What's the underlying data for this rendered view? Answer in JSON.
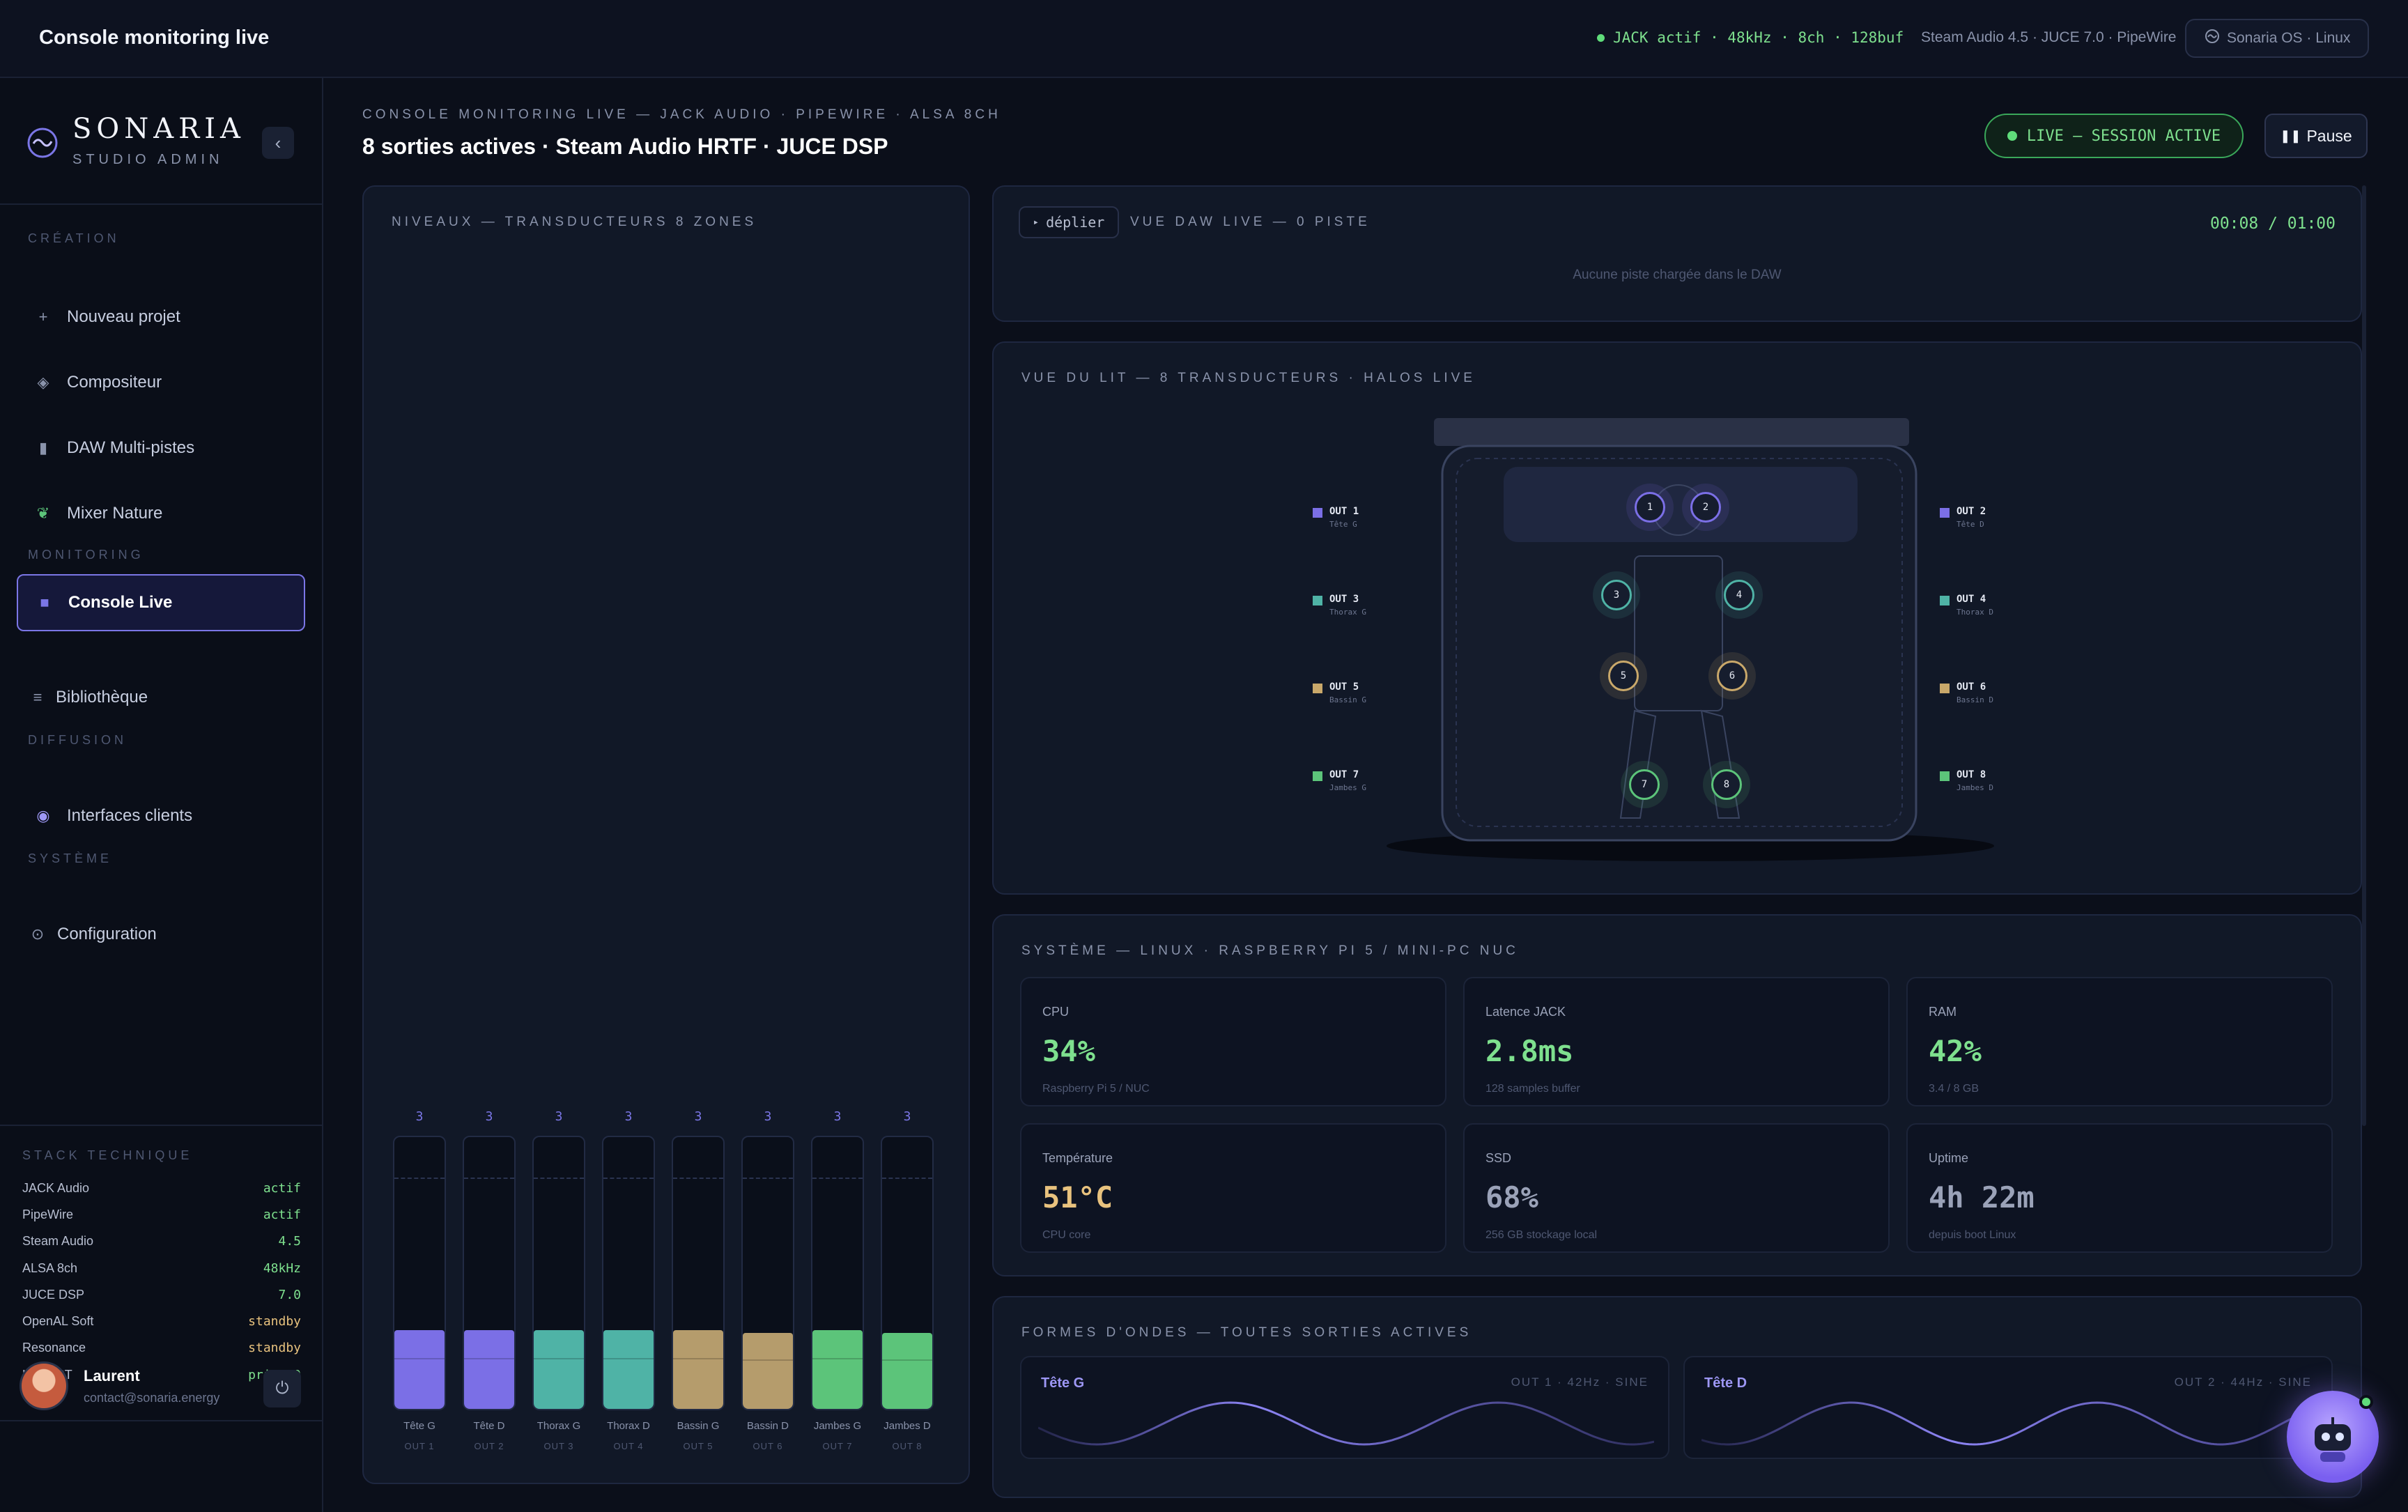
{
  "topbar": {
    "title": "Console monitoring live",
    "jack_status": "JACK actif · 48kHz · 8ch · 128buf",
    "stack_info": "Steam Audio 4.5 · JUCE 7.0 · PipeWire",
    "os_label": "Sonaria OS · Linux"
  },
  "brand": {
    "name": "SONARIA",
    "subtitle": "STUDIO ADMIN"
  },
  "sidebar": {
    "sections": {
      "creation": "CRÉATION",
      "monitoring": "MONITORING",
      "diffusion": "DIFFUSION",
      "systeme": "SYSTÈME"
    },
    "items": [
      {
        "label": "Nouveau projet",
        "icon": "plus-icon"
      },
      {
        "label": "Compositeur",
        "icon": "diamond-icon"
      },
      {
        "label": "DAW Multi-pistes",
        "icon": "mixer-icon"
      },
      {
        "label": "Mixer Nature",
        "icon": "leaf-icon"
      },
      {
        "label": "Console Live",
        "icon": "square-icon",
        "active": true
      },
      {
        "label": "Bibliothèque",
        "icon": "lines-icon"
      },
      {
        "label": "Interfaces clients",
        "icon": "circle-icon"
      },
      {
        "label": "Configuration",
        "icon": "gear-icon"
      }
    ],
    "stack_title": "STACK TECHNIQUE",
    "stack": [
      {
        "name": "JACK Audio",
        "value": "actif"
      },
      {
        "name": "PipeWire",
        "value": "actif"
      },
      {
        "name": "Steam Audio",
        "value": "4.5"
      },
      {
        "name": "ALSA 8ch",
        "value": "48kHz"
      },
      {
        "name": "JUCE DSP",
        "value": "7.0"
      },
      {
        "name": "OpenAL Soft",
        "value": "standby"
      },
      {
        "name": "Resonance",
        "value": "standby"
      },
      {
        "name": "Linux RT",
        "value": "prio 90"
      }
    ],
    "user": {
      "name": "Laurent",
      "email": "contact@sonaria.energy"
    }
  },
  "header": {
    "kicker": "CONSOLE MONITORING LIVE — JACK AUDIO · PIPEWIRE · ALSA 8CH",
    "title": "8 sorties actives · Steam Audio HRTF · JUCE DSP",
    "live_badge": "LIVE — SESSION ACTIVE",
    "pause_label": "Pause"
  },
  "levels": {
    "title": "NIVEAUX — TRANSDUCTEURS 8 ZONES",
    "channels": [
      {
        "label": "Tête G",
        "out": "OUT 1",
        "value": "3",
        "level": 0.29,
        "color": "#7b6fe6"
      },
      {
        "label": "Tête D",
        "out": "OUT 2",
        "value": "3",
        "level": 0.29,
        "color": "#7b6fe6"
      },
      {
        "label": "Thorax G",
        "out": "OUT 3",
        "value": "3",
        "level": 0.29,
        "color": "#4fb3a6"
      },
      {
        "label": "Thorax D",
        "out": "OUT 4",
        "value": "3",
        "level": 0.29,
        "color": "#4fb3a6"
      },
      {
        "label": "Bassin G",
        "out": "OUT 5",
        "value": "3",
        "level": 0.29,
        "color": "#b59c6c"
      },
      {
        "label": "Bassin D",
        "out": "OUT 6",
        "value": "3",
        "level": 0.28,
        "color": "#b59c6c"
      },
      {
        "label": "Jambes G",
        "out": "OUT 7",
        "value": "3",
        "level": 0.29,
        "color": "#5cc47a"
      },
      {
        "label": "Jambes D",
        "out": "OUT 8",
        "value": "3",
        "level": 0.28,
        "color": "#5cc47a"
      }
    ]
  },
  "daw": {
    "expand_label": "déplier",
    "title": "VUE DAW LIVE — 0 PISTE",
    "time": "00:08 / 01:00",
    "empty": "Aucune piste chargée dans le DAW"
  },
  "bed": {
    "title": "VUE DU LIT — 8 TRANSDUCTEURS · HALOS LIVE",
    "outputs": [
      {
        "out": "OUT 1",
        "zone": "Tête G",
        "color": "#7b6fe6"
      },
      {
        "out": "OUT 2",
        "zone": "Tête D",
        "color": "#7b6fe6"
      },
      {
        "out": "OUT 3",
        "zone": "Thorax G",
        "color": "#4fb3a6"
      },
      {
        "out": "OUT 4",
        "zone": "Thorax D",
        "color": "#4fb3a6"
      },
      {
        "out": "OUT 5",
        "zone": "Bassin G",
        "color": "#c9a86a"
      },
      {
        "out": "OUT 6",
        "zone": "Bassin D",
        "color": "#c9a86a"
      },
      {
        "out": "OUT 7",
        "zone": "Jambes G",
        "color": "#5cc47a"
      },
      {
        "out": "OUT 8",
        "zone": "Jambes D",
        "color": "#5cc47a"
      }
    ],
    "node_labels": [
      "1",
      "2",
      "3",
      "4",
      "5",
      "6",
      "7",
      "8"
    ]
  },
  "system": {
    "title": "SYSTÈME — LINUX · RASPBERRY PI 5 / MINI-PC NUC",
    "stats": [
      {
        "label": "CPU",
        "value": "34%",
        "sub": "Raspberry Pi 5 / NUC",
        "color": "#7ee08e"
      },
      {
        "label": "Latence JACK",
        "value": "2.8ms",
        "sub": "128 samples buffer",
        "color": "#7ee08e"
      },
      {
        "label": "RAM",
        "value": "42%",
        "sub": "3.4 / 8 GB",
        "color": "#7ee08e"
      },
      {
        "label": "Température",
        "value": "51°C",
        "sub": "CPU core",
        "color": "#e8c27e"
      },
      {
        "label": "SSD",
        "value": "68%",
        "sub": "256 GB stockage local",
        "color": "#9aa2b8"
      },
      {
        "label": "Uptime",
        "value": "4h 22m",
        "sub": "depuis boot Linux",
        "color": "#9aa2b8"
      }
    ]
  },
  "waves": {
    "title": "FORMES D'ONDES — TOUTES SORTIES ACTIVES",
    "cards": [
      {
        "name": "Tête G",
        "meta": "OUT 1 · 42Hz · SINE"
      },
      {
        "name": "Tête D",
        "meta": "OUT 2 · 44Hz · SINE"
      }
    ]
  },
  "colors": {
    "accent": "#7b76e6",
    "live": "#7ee08e",
    "background": "#0b0f1a"
  }
}
